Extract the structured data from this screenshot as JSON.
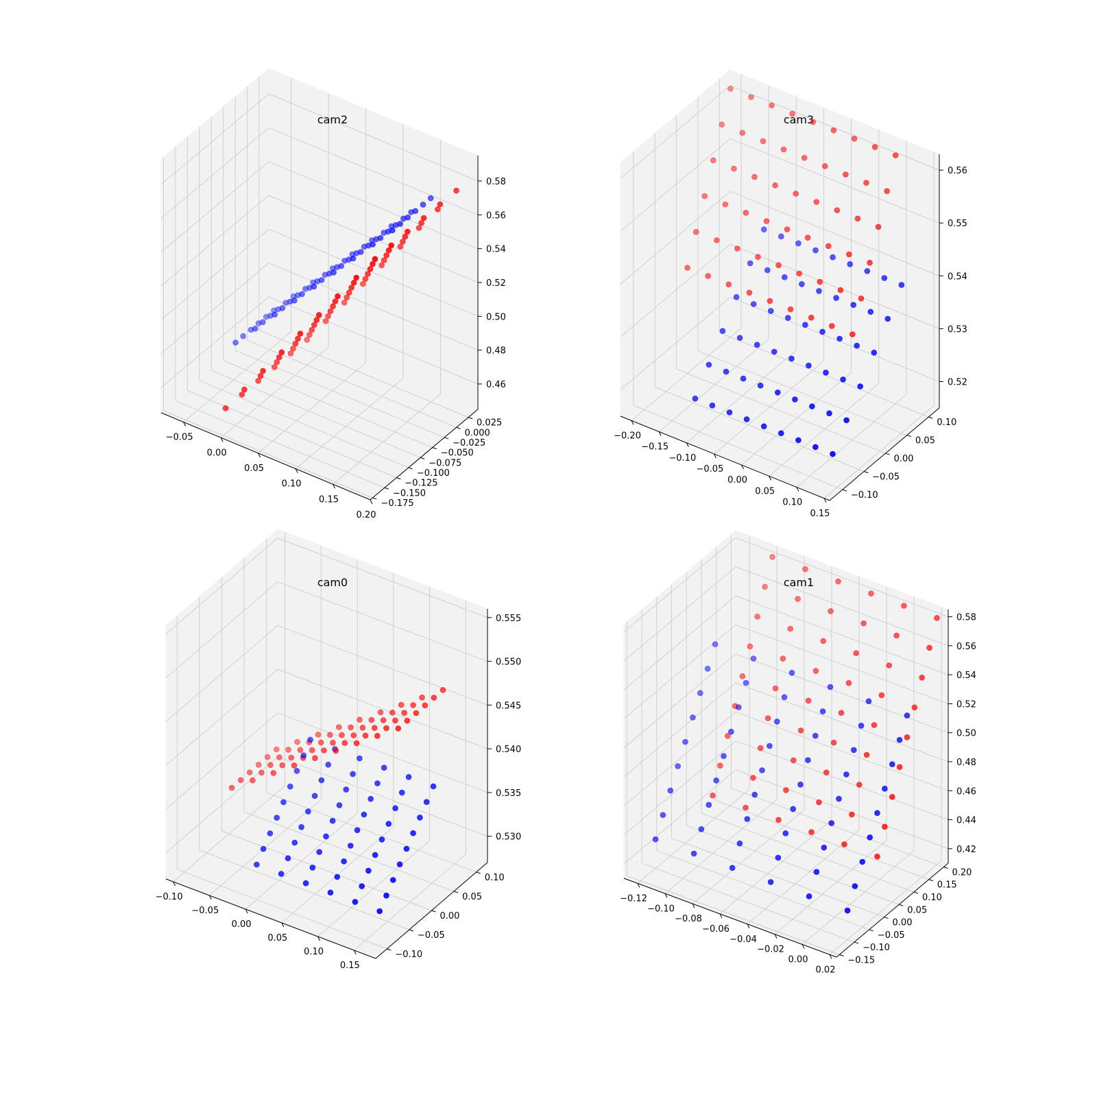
{
  "figure": {
    "background": "#ffffff"
  },
  "colors": {
    "red_series": "#ff0000",
    "blue_series": "#0000ff",
    "pane": "#f2f2f2",
    "grid": "#cfcfcf"
  },
  "chart_data": [
    {
      "type": "scatter3d",
      "title": "cam2",
      "xlim": [
        -0.08,
        0.2
      ],
      "ylim": [
        -0.18,
        0.045
      ],
      "zlim": [
        0.445,
        0.595
      ],
      "xticks": [
        "−0.05",
        "0.00",
        "0.05",
        "0.10",
        "0.15",
        "0.20"
      ],
      "xtick_values": [
        -0.05,
        0.0,
        0.05,
        0.1,
        0.15,
        0.2
      ],
      "yticks": [
        "−0.175",
        "−0.150",
        "−0.125",
        "−0.100",
        "−0.075",
        "−0.050",
        "−0.025",
        "0.000",
        "0.025"
      ],
      "ytick_values": [
        -0.175,
        -0.15,
        -0.125,
        -0.1,
        -0.075,
        -0.05,
        -0.025,
        0.0,
        0.025
      ],
      "zticks": [
        "0.46",
        "0.48",
        "0.50",
        "0.52",
        "0.54",
        "0.56",
        "0.58"
      ],
      "ztick_values": [
        0.46,
        0.48,
        0.5,
        0.52,
        0.54,
        0.56,
        0.58
      ],
      "grid": true,
      "series": [
        {
          "color": "#ff0000",
          "pattern": "grid",
          "rows": 6,
          "cols": 9,
          "x_range": [
            0.0,
            0.2
          ],
          "y_range": [
            -0.17,
            0.0
          ],
          "z_range": [
            0.46,
            0.585
          ],
          "z_from": "x",
          "z_slope_y": 0.0
        },
        {
          "color": "#0000ff",
          "pattern": "grid",
          "rows": 6,
          "cols": 9,
          "x_range": [
            -0.07,
            0.14
          ],
          "y_range": [
            -0.04,
            0.04
          ],
          "z_range": [
            0.455,
            0.56
          ],
          "z_from": "x",
          "z_slope_y": 0.0
        }
      ]
    },
    {
      "type": "scatter3d",
      "title": "cam3",
      "xlim": [
        -0.22,
        0.16
      ],
      "ylim": [
        -0.13,
        0.125
      ],
      "zlim": [
        0.515,
        0.563
      ],
      "xticks": [
        "−0.20",
        "−0.15",
        "−0.10",
        "−0.05",
        "0.00",
        "0.05",
        "0.10",
        "0.15"
      ],
      "xtick_values": [
        -0.2,
        -0.15,
        -0.1,
        -0.05,
        0.0,
        0.05,
        0.1,
        0.15
      ],
      "yticks": [
        "−0.10",
        "−0.05",
        "0.00",
        "0.05",
        "0.10"
      ],
      "ytick_values": [
        -0.1,
        -0.05,
        0.0,
        0.05,
        0.1
      ],
      "zticks": [
        "0.52",
        "0.53",
        "0.54",
        "0.55",
        "0.56"
      ],
      "ztick_values": [
        0.52,
        0.53,
        0.54,
        0.55,
        0.56
      ],
      "grid": true,
      "series": [
        {
          "color": "#ff0000",
          "pattern": "grid",
          "rows": 9,
          "cols": 6,
          "x_range": [
            -0.2,
            0.1
          ],
          "y_range": [
            0.0,
            0.1
          ],
          "z_range": [
            0.535,
            0.562
          ],
          "z_from": "y",
          "z_slope_y": 0.0
        },
        {
          "color": "#0000ff",
          "pattern": "grid",
          "rows": 9,
          "cols": 6,
          "x_range": [
            -0.1,
            0.15
          ],
          "y_range": [
            -0.11,
            0.05
          ],
          "z_range": [
            0.522,
            0.543
          ],
          "z_from": "y",
          "z_slope_y": 0.0
        }
      ]
    },
    {
      "type": "scatter3d",
      "title": "cam0",
      "xlim": [
        -0.11,
        0.18
      ],
      "ylim": [
        -0.125,
        0.125
      ],
      "zlim": [
        0.527,
        0.556
      ],
      "xticks": [
        "−0.10",
        "−0.05",
        "0.00",
        "0.05",
        "0.10",
        "0.15"
      ],
      "xtick_values": [
        -0.1,
        -0.05,
        0.0,
        0.05,
        0.1,
        0.15
      ],
      "yticks": [
        "−0.10",
        "−0.05",
        "0.00",
        "0.05",
        "0.10"
      ],
      "ytick_values": [
        -0.1,
        -0.05,
        0.0,
        0.05,
        0.1
      ],
      "zticks": [
        "0.530",
        "0.535",
        "0.540",
        "0.545",
        "0.550",
        "0.555"
      ],
      "ztick_values": [
        0.53,
        0.535,
        0.54,
        0.545,
        0.55,
        0.555
      ],
      "grid": true,
      "series": [
        {
          "color": "#ff0000",
          "pattern": "grid",
          "rows": 6,
          "cols": 9,
          "x_range": [
            -0.09,
            0.14
          ],
          "y_range": [
            -0.01,
            0.09
          ],
          "z_range": [
            0.533,
            0.547
          ],
          "z_from": "x",
          "z_slope_y": 0.0
        },
        {
          "color": "#0000ff",
          "pattern": "grid",
          "rows": 6,
          "cols": 9,
          "x_range": [
            0.0,
            0.17
          ],
          "y_range": [
            -0.1,
            0.02
          ],
          "z_range": [
            0.531,
            0.54
          ],
          "z_from": "y",
          "z_slope_y": 0.0
        }
      ]
    },
    {
      "type": "scatter3d",
      "title": "cam1",
      "xlim": [
        -0.13,
        0.025
      ],
      "ylim": [
        -0.16,
        0.215
      ],
      "zlim": [
        0.41,
        0.585
      ],
      "xticks": [
        "−0.12",
        "−0.10",
        "−0.08",
        "−0.06",
        "−0.04",
        "−0.02",
        "0.00",
        "0.02"
      ],
      "xtick_values": [
        -0.12,
        -0.1,
        -0.08,
        -0.06,
        -0.04,
        -0.02,
        0.0,
        0.02
      ],
      "yticks": [
        "−0.15",
        "−0.10",
        "−0.05",
        "0.00",
        "0.05",
        "0.10",
        "0.15",
        "0.20"
      ],
      "ytick_values": [
        -0.15,
        -0.1,
        -0.05,
        0.0,
        0.05,
        0.1,
        0.15,
        0.2
      ],
      "zticks": [
        "0.42",
        "0.44",
        "0.46",
        "0.48",
        "0.50",
        "0.52",
        "0.54",
        "0.56",
        "0.58"
      ],
      "ztick_values": [
        0.42,
        0.44,
        0.46,
        0.48,
        0.5,
        0.52,
        0.54,
        0.56,
        0.58
      ],
      "grid": true,
      "series": [
        {
          "color": "#ff0000",
          "pattern": "grid",
          "rows": 6,
          "cols": 9,
          "x_range": [
            -0.1,
            0.02
          ],
          "y_range": [
            0.0,
            0.2
          ],
          "z_range": [
            0.45,
            0.58
          ],
          "z_from": "y",
          "z_slope_y": 0.0
        },
        {
          "color": "#0000ff",
          "pattern": "grid",
          "rows": 6,
          "cols": 9,
          "x_range": [
            -0.12,
            0.02
          ],
          "y_range": [
            -0.1,
            0.1
          ],
          "z_range": [
            0.43,
            0.53
          ],
          "z_from": "y",
          "z_slope_y": 0.0
        }
      ]
    }
  ]
}
